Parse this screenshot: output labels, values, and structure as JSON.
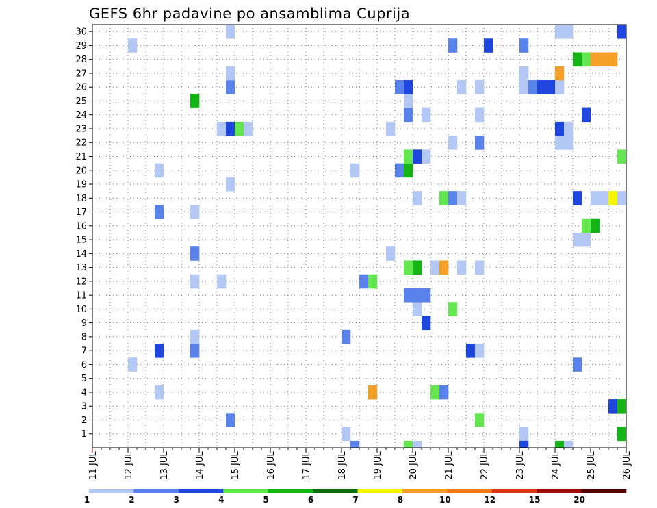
{
  "chart_data": {
    "type": "heatmap",
    "title": "GEFS 6hr padavine po ansamblima Cuprija",
    "x_ticks": [
      "11 JUL",
      "12 JUL",
      "13 JUL",
      "14 JUL",
      "15 JUL",
      "16 JUL",
      "17 JUL",
      "18 JUL",
      "19 JUL",
      "20 JUL",
      "21 JUL",
      "22 JUL",
      "23 JUL",
      "24 JUL",
      "25 JUL",
      "26 JUL"
    ],
    "y_ticks": [
      "1",
      "2",
      "3",
      "4",
      "5",
      "6",
      "7",
      "8",
      "9",
      "10",
      "11",
      "12",
      "13",
      "14",
      "15",
      "16",
      "17",
      "18",
      "19",
      "20",
      "21",
      "22",
      "23",
      "24",
      "25",
      "26",
      "27",
      "28",
      "29",
      "30"
    ],
    "xlim": [
      0,
      60
    ],
    "ylim": [
      0,
      30
    ],
    "grid": true,
    "legend_placement": "bottom",
    "color_levels": {
      "labels": [
        "1",
        "2",
        "3",
        "4",
        "5",
        "6",
        "7",
        "8",
        "10",
        "12",
        "15",
        "20"
      ],
      "colors": [
        "#b4c8f5",
        "#5a82eb",
        "#1e46dc",
        "#64e650",
        "#14b414",
        "#0a6e0a",
        "#f5f500",
        "#f5a028",
        "#f57814",
        "#dc3214",
        "#a00a0a",
        "#550000"
      ]
    },
    "cells": [
      {
        "m": 1,
        "t": 28,
        "v": 1
      },
      {
        "m": 1,
        "t": 48,
        "v": 1
      },
      {
        "m": 1,
        "t": 59,
        "v": 5
      },
      {
        "m": 2,
        "t": 15,
        "v": 2
      },
      {
        "m": 2,
        "t": 43,
        "v": 4
      },
      {
        "m": 3,
        "t": 58,
        "v": 3
      },
      {
        "m": 3,
        "t": 59,
        "v": 5
      },
      {
        "m": 4,
        "t": 7,
        "v": 1
      },
      {
        "m": 4,
        "t": 31,
        "v": 8
      },
      {
        "m": 4,
        "t": 38,
        "v": 4
      },
      {
        "m": 4,
        "t": 39,
        "v": 2
      },
      {
        "m": 6,
        "t": 4,
        "v": 1
      },
      {
        "m": 6,
        "t": 54,
        "v": 2
      },
      {
        "m": 7,
        "t": 7,
        "v": 3
      },
      {
        "m": 7,
        "t": 11,
        "v": 2
      },
      {
        "m": 7,
        "t": 42,
        "v": 3
      },
      {
        "m": 7,
        "t": 43,
        "v": 1
      },
      {
        "m": 8,
        "t": 11,
        "v": 1
      },
      {
        "m": 8,
        "t": 28,
        "v": 2
      },
      {
        "m": 9,
        "t": 37,
        "v": 3
      },
      {
        "m": 10,
        "t": 36,
        "v": 1
      },
      {
        "m": 10,
        "t": 40,
        "v": 4
      },
      {
        "m": 11,
        "t": 35,
        "v": 2
      },
      {
        "m": 11,
        "t": 36,
        "v": 2
      },
      {
        "m": 11,
        "t": 37,
        "v": 2
      },
      {
        "m": 12,
        "t": 11,
        "v": 1
      },
      {
        "m": 12,
        "t": 14,
        "v": 1
      },
      {
        "m": 12,
        "t": 30,
        "v": 2
      },
      {
        "m": 12,
        "t": 31,
        "v": 4
      },
      {
        "m": 13,
        "t": 35,
        "v": 4
      },
      {
        "m": 13,
        "t": 36,
        "v": 5
      },
      {
        "m": 13,
        "t": 38,
        "v": 1
      },
      {
        "m": 13,
        "t": 39,
        "v": 8
      },
      {
        "m": 13,
        "t": 41,
        "v": 1
      },
      {
        "m": 13,
        "t": 43,
        "v": 1
      },
      {
        "m": 14,
        "t": 11,
        "v": 2
      },
      {
        "m": 14,
        "t": 33,
        "v": 1
      },
      {
        "m": 15,
        "t": 54,
        "v": 1
      },
      {
        "m": 15,
        "t": 55,
        "v": 1
      },
      {
        "m": 16,
        "t": 55,
        "v": 4
      },
      {
        "m": 16,
        "t": 56,
        "v": 5
      },
      {
        "m": 17,
        "t": 7,
        "v": 2
      },
      {
        "m": 17,
        "t": 11,
        "v": 1
      },
      {
        "m": 18,
        "t": 36,
        "v": 1
      },
      {
        "m": 18,
        "t": 39,
        "v": 4
      },
      {
        "m": 18,
        "t": 40,
        "v": 2
      },
      {
        "m": 18,
        "t": 41,
        "v": 1
      },
      {
        "m": 18,
        "t": 54,
        "v": 3
      },
      {
        "m": 18,
        "t": 56,
        "v": 1
      },
      {
        "m": 18,
        "t": 57,
        "v": 1
      },
      {
        "m": 18,
        "t": 58,
        "v": 7
      },
      {
        "m": 18,
        "t": 59,
        "v": 1
      },
      {
        "m": 19,
        "t": 15,
        "v": 1
      },
      {
        "m": 20,
        "t": 7,
        "v": 1
      },
      {
        "m": 20,
        "t": 29,
        "v": 1
      },
      {
        "m": 20,
        "t": 34,
        "v": 2
      },
      {
        "m": 20,
        "t": 35,
        "v": 5
      },
      {
        "m": 21,
        "t": 35,
        "v": 4
      },
      {
        "m": 21,
        "t": 36,
        "v": 3
      },
      {
        "m": 21,
        "t": 37,
        "v": 1
      },
      {
        "m": 21,
        "t": 59,
        "v": 4
      },
      {
        "m": 22,
        "t": 40,
        "v": 1
      },
      {
        "m": 22,
        "t": 43,
        "v": 2
      },
      {
        "m": 22,
        "t": 52,
        "v": 1
      },
      {
        "m": 22,
        "t": 53,
        "v": 1
      },
      {
        "m": 23,
        "t": 14,
        "v": 1
      },
      {
        "m": 23,
        "t": 15,
        "v": 3
      },
      {
        "m": 23,
        "t": 16,
        "v": 4
      },
      {
        "m": 23,
        "t": 17,
        "v": 1
      },
      {
        "m": 23,
        "t": 33,
        "v": 1
      },
      {
        "m": 23,
        "t": 52,
        "v": 3
      },
      {
        "m": 23,
        "t": 53,
        "v": 1
      },
      {
        "m": 24,
        "t": 35,
        "v": 2
      },
      {
        "m": 24,
        "t": 37,
        "v": 1
      },
      {
        "m": 24,
        "t": 43,
        "v": 1
      },
      {
        "m": 24,
        "t": 55,
        "v": 3
      },
      {
        "m": 25,
        "t": 11,
        "v": 5
      },
      {
        "m": 25,
        "t": 35,
        "v": 1
      },
      {
        "m": 26,
        "t": 15,
        "v": 2
      },
      {
        "m": 26,
        "t": 34,
        "v": 2
      },
      {
        "m": 26,
        "t": 35,
        "v": 3
      },
      {
        "m": 26,
        "t": 41,
        "v": 1
      },
      {
        "m": 26,
        "t": 43,
        "v": 1
      },
      {
        "m": 26,
        "t": 48,
        "v": 1
      },
      {
        "m": 26,
        "t": 49,
        "v": 2
      },
      {
        "m": 26,
        "t": 50,
        "v": 3
      },
      {
        "m": 26,
        "t": 51,
        "v": 3
      },
      {
        "m": 26,
        "t": 52,
        "v": 1
      },
      {
        "m": 27,
        "t": 15,
        "v": 1
      },
      {
        "m": 27,
        "t": 48,
        "v": 1
      },
      {
        "m": 27,
        "t": 52,
        "v": 8
      },
      {
        "m": 28,
        "t": 54,
        "v": 5
      },
      {
        "m": 28,
        "t": 55,
        "v": 4
      },
      {
        "m": 28,
        "t": 56,
        "v": 8
      },
      {
        "m": 28,
        "t": 57,
        "v": 8
      },
      {
        "m": 28,
        "t": 58,
        "v": 8
      },
      {
        "m": 29,
        "t": 4,
        "v": 1
      },
      {
        "m": 29,
        "t": 40,
        "v": 2
      },
      {
        "m": 29,
        "t": 44,
        "v": 3
      },
      {
        "m": 29,
        "t": 48,
        "v": 2
      },
      {
        "m": 30,
        "t": 15,
        "v": 1
      },
      {
        "m": 30,
        "t": 52,
        "v": 1
      },
      {
        "m": 30,
        "t": 53,
        "v": 1
      },
      {
        "m": 30,
        "t": 59,
        "v": 3
      },
      {
        "m": 0,
        "t": 29,
        "v": 2
      },
      {
        "m": 0,
        "t": 35,
        "v": 4
      },
      {
        "m": 0,
        "t": 36,
        "v": 1
      },
      {
        "m": 0,
        "t": 48,
        "v": 3
      },
      {
        "m": 0,
        "t": 52,
        "v": 5
      },
      {
        "m": 0,
        "t": 53,
        "v": 1
      }
    ]
  }
}
